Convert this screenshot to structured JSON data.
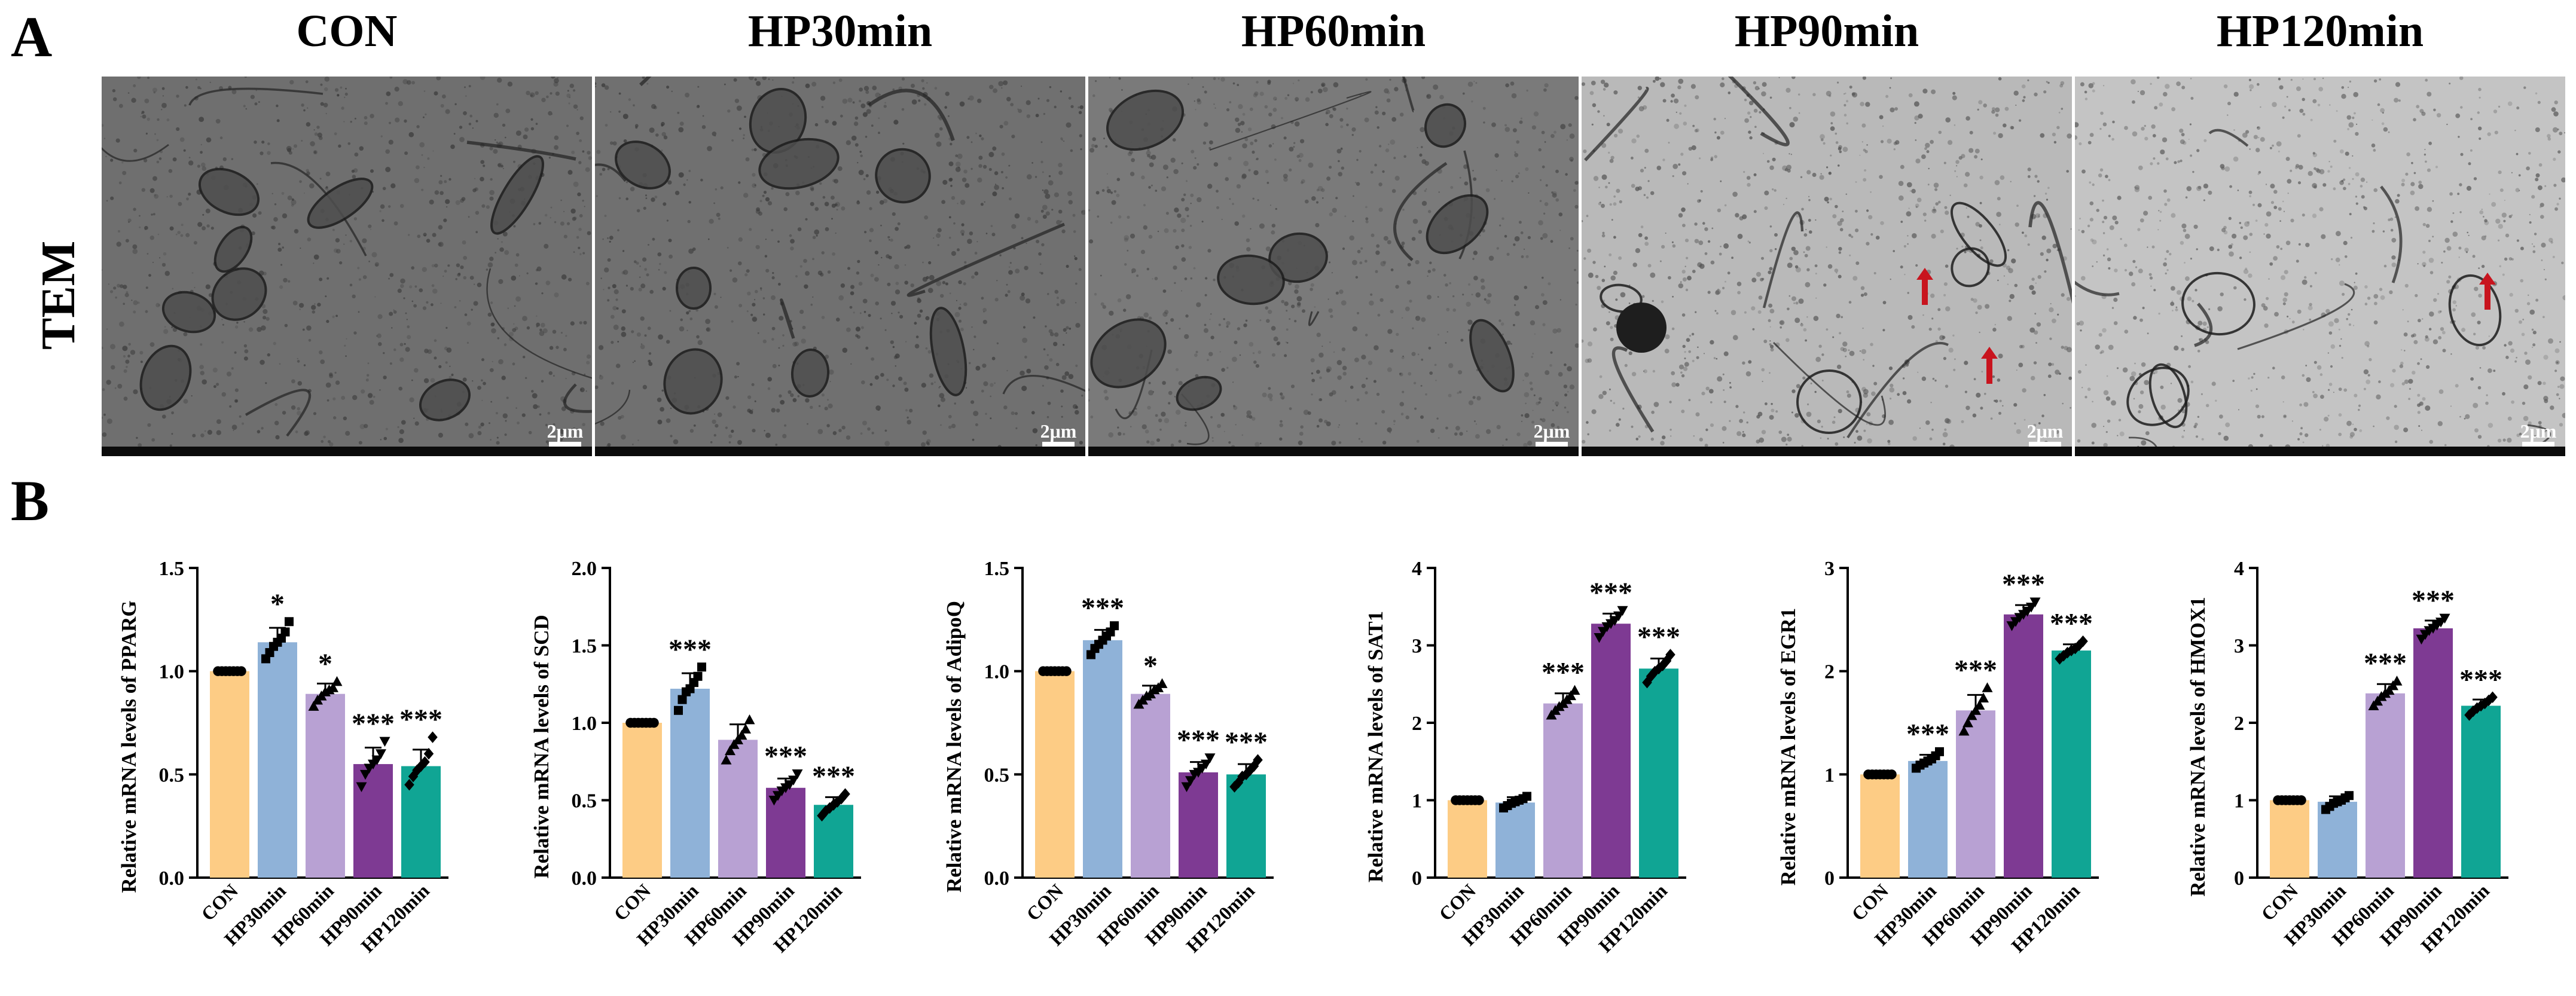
{
  "panels": {
    "a": "A",
    "b": "B"
  },
  "tem": {
    "row_label": "TEM",
    "scale_label": "2μm",
    "groups": [
      "CON",
      "HP30min",
      "HP60min",
      "HP90min",
      "HP120min"
    ],
    "arrow_color": "#c8141e"
  },
  "chart_data": [
    {
      "type": "bar",
      "ylabel": "Relative mRNA levels of PPARG",
      "categories": [
        "CON",
        "HP30min",
        "HP60min",
        "HP90min",
        "HP120min"
      ],
      "values": [
        1.0,
        1.14,
        0.89,
        0.55,
        0.54
      ],
      "errors": [
        0.0,
        0.07,
        0.05,
        0.08,
        0.08
      ],
      "points": [
        [
          1,
          1,
          1,
          1,
          1,
          1,
          1
        ],
        [
          1.06,
          1.09,
          1.12,
          1.14,
          1.16,
          1.19,
          1.24
        ],
        [
          0.83,
          0.86,
          0.88,
          0.9,
          0.91,
          0.92,
          0.95
        ],
        [
          0.44,
          0.5,
          0.53,
          0.55,
          0.57,
          0.6,
          0.66
        ],
        [
          0.45,
          0.49,
          0.52,
          0.54,
          0.56,
          0.6,
          0.68
        ]
      ],
      "markers": [
        "circle",
        "square",
        "triangle-up",
        "triangle-down",
        "diamond"
      ],
      "significance": [
        "",
        "*",
        "*",
        "***",
        "***"
      ],
      "ylim": [
        0,
        1.5
      ],
      "yticks": [
        "0.0",
        "0.5",
        "1.0",
        "1.5"
      ],
      "ytick_values": [
        0,
        0.5,
        1.0,
        1.5
      ]
    },
    {
      "type": "bar",
      "ylabel": "Relative mRNA levels of SCD",
      "categories": [
        "CON",
        "HP30min",
        "HP60min",
        "HP90min",
        "HP120min"
      ],
      "values": [
        1.0,
        1.22,
        0.89,
        0.58,
        0.47
      ],
      "errors": [
        0.0,
        0.1,
        0.1,
        0.06,
        0.05
      ],
      "points": [
        [
          1,
          1,
          1,
          1,
          1,
          1,
          1
        ],
        [
          1.08,
          1.15,
          1.2,
          1.22,
          1.26,
          1.3,
          1.36
        ],
        [
          0.76,
          0.82,
          0.86,
          0.89,
          0.92,
          0.96,
          1.02
        ],
        [
          0.5,
          0.53,
          0.56,
          0.58,
          0.6,
          0.63,
          0.67
        ],
        [
          0.4,
          0.43,
          0.45,
          0.47,
          0.49,
          0.51,
          0.54
        ]
      ],
      "markers": [
        "circle",
        "square",
        "triangle-up",
        "triangle-down",
        "diamond"
      ],
      "significance": [
        "",
        "***",
        "",
        "***",
        "***"
      ],
      "ylim": [
        0,
        2.0
      ],
      "yticks": [
        "0.0",
        "0.5",
        "1.0",
        "1.5",
        "2.0"
      ],
      "ytick_values": [
        0,
        0.5,
        1.0,
        1.5,
        2.0
      ]
    },
    {
      "type": "bar",
      "ylabel": "Relative mRNA levels of AdipoQ",
      "categories": [
        "CON",
        "HP30min",
        "HP60min",
        "HP90min",
        "HP120min"
      ],
      "values": [
        1.0,
        1.15,
        0.89,
        0.51,
        0.5
      ],
      "errors": [
        0.0,
        0.05,
        0.04,
        0.05,
        0.05
      ],
      "points": [
        [
          1,
          1,
          1,
          1,
          1,
          1,
          1
        ],
        [
          1.08,
          1.11,
          1.13,
          1.15,
          1.17,
          1.19,
          1.22
        ],
        [
          0.84,
          0.86,
          0.88,
          0.89,
          0.91,
          0.92,
          0.94
        ],
        [
          0.44,
          0.47,
          0.5,
          0.51,
          0.53,
          0.55,
          0.58
        ],
        [
          0.44,
          0.46,
          0.49,
          0.5,
          0.52,
          0.54,
          0.57
        ]
      ],
      "markers": [
        "circle",
        "square",
        "triangle-up",
        "triangle-down",
        "diamond"
      ],
      "significance": [
        "",
        "***",
        "*",
        "***",
        "***"
      ],
      "ylim": [
        0,
        1.5
      ],
      "yticks": [
        "0.0",
        "0.5",
        "1.0",
        "1.5"
      ],
      "ytick_values": [
        0,
        0.5,
        1.0,
        1.5
      ]
    },
    {
      "type": "bar",
      "ylabel": "Relative mRNA levels of SAT1",
      "categories": [
        "CON",
        "HP30min",
        "HP60min",
        "HP90min",
        "HP120min"
      ],
      "values": [
        1.0,
        0.97,
        2.25,
        3.28,
        2.7
      ],
      "errors": [
        0.0,
        0.07,
        0.13,
        0.13,
        0.13
      ],
      "points": [
        [
          1,
          1,
          1,
          1,
          1,
          1,
          1
        ],
        [
          0.9,
          0.93,
          0.96,
          0.98,
          1.0,
          1.02,
          1.05
        ],
        [
          2.1,
          2.16,
          2.21,
          2.25,
          2.3,
          2.35,
          2.42
        ],
        [
          3.1,
          3.18,
          3.24,
          3.28,
          3.32,
          3.38,
          3.45
        ],
        [
          2.52,
          2.6,
          2.66,
          2.7,
          2.74,
          2.8,
          2.88
        ]
      ],
      "markers": [
        "circle",
        "square",
        "triangle-up",
        "triangle-down",
        "diamond"
      ],
      "significance": [
        "",
        "",
        "***",
        "***",
        "***"
      ],
      "ylim": [
        0,
        4
      ],
      "yticks": [
        "0",
        "1",
        "2",
        "3",
        "4"
      ],
      "ytick_values": [
        0,
        1,
        2,
        3,
        4
      ]
    },
    {
      "type": "bar",
      "ylabel": "Relative mRNA levels of EGR1",
      "categories": [
        "CON",
        "HP30min",
        "HP60min",
        "HP90min",
        "HP120min"
      ],
      "values": [
        1.0,
        1.13,
        1.62,
        2.55,
        2.2
      ],
      "errors": [
        0.0,
        0.06,
        0.15,
        0.09,
        0.06
      ],
      "points": [
        [
          1,
          1,
          1,
          1,
          1,
          1,
          1
        ],
        [
          1.06,
          1.09,
          1.11,
          1.13,
          1.15,
          1.18,
          1.22
        ],
        [
          1.42,
          1.5,
          1.57,
          1.62,
          1.67,
          1.74,
          1.84
        ],
        [
          2.44,
          2.48,
          2.52,
          2.55,
          2.58,
          2.62,
          2.67
        ],
        [
          2.12,
          2.15,
          2.18,
          2.2,
          2.22,
          2.25,
          2.29
        ]
      ],
      "markers": [
        "circle",
        "square",
        "triangle-up",
        "triangle-down",
        "diamond"
      ],
      "significance": [
        "",
        "***",
        "***",
        "***",
        "***"
      ],
      "ylim": [
        0,
        3
      ],
      "yticks": [
        "0",
        "1",
        "2",
        "3"
      ],
      "ytick_values": [
        0,
        1,
        2,
        3
      ]
    },
    {
      "type": "bar",
      "ylabel": "Relative mRNA levels of HMOX1",
      "categories": [
        "CON",
        "HP30min",
        "HP60min",
        "HP90min",
        "HP120min"
      ],
      "values": [
        1.0,
        0.98,
        2.38,
        3.22,
        2.22
      ],
      "errors": [
        0.0,
        0.07,
        0.12,
        0.1,
        0.08
      ],
      "points": [
        [
          1,
          1,
          1,
          1,
          1,
          1,
          1
        ],
        [
          0.88,
          0.92,
          0.96,
          0.98,
          1.0,
          1.03,
          1.06
        ],
        [
          2.22,
          2.28,
          2.34,
          2.38,
          2.42,
          2.48,
          2.54
        ],
        [
          3.08,
          3.14,
          3.19,
          3.22,
          3.26,
          3.3,
          3.35
        ],
        [
          2.1,
          2.15,
          2.19,
          2.22,
          2.25,
          2.29,
          2.33
        ]
      ],
      "markers": [
        "circle",
        "square",
        "triangle-up",
        "triangle-down",
        "diamond"
      ],
      "significance": [
        "",
        "",
        "***",
        "***",
        "***"
      ],
      "ylim": [
        0,
        4
      ],
      "yticks": [
        "0",
        "1",
        "2",
        "3",
        "4"
      ],
      "ytick_values": [
        0,
        1,
        2,
        3,
        4
      ]
    }
  ],
  "colors": {
    "bars": [
      "#fdcc85",
      "#8fb2d8",
      "#b8a1d3",
      "#7e3a93",
      "#10a594"
    ],
    "axis": "#000000",
    "tem_dark": "#1f1f1f",
    "tem_mid": "#6b6b6b",
    "tem_light": "#cfcfcf"
  }
}
